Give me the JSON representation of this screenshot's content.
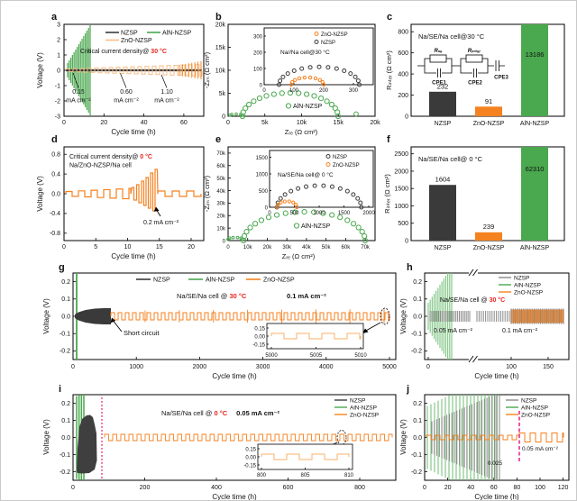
{
  "colors": {
    "nzsp": "#3a3a3a",
    "nzsp_gray": "#8a8a8a",
    "aln_nzsp": "#4aa84e",
    "zno_nzsp": "#f58220",
    "zno_light": "#f9bd86",
    "temp_red": "#e8251f",
    "dotted_line_red": "#ef3b6e",
    "dashed_line_magenta": "#ec2a90"
  },
  "chart_data": [
    {
      "panel": "a",
      "type": "line",
      "ylabel": "Voltage (V)",
      "xlabel": "Cycle time (h)",
      "xlim": [
        0,
        70
      ],
      "ylim": [
        -3,
        3
      ],
      "xticks": [
        "0",
        "20",
        "40",
        "60"
      ],
      "yticks": [
        "3",
        "2",
        "1",
        "0",
        "-1",
        "-2",
        "-3"
      ],
      "legend": [
        "NZSP",
        "AlN-NZSP",
        "ZnO-NZSP"
      ],
      "note": {
        "prefix": "Critical current density@ ",
        "temp": "30 °C"
      },
      "annotations": [
        {
          "value": "0.15",
          "unit": "mA cm⁻²"
        },
        {
          "value": "0.60",
          "unit": "mA cm⁻²"
        },
        {
          "value": "1.10",
          "unit": "mA cm⁻²"
        }
      ],
      "series": [
        {
          "name": "NZSP",
          "behavior": "small stable polarization near 0 V over 0-70 h"
        },
        {
          "name": "AlN-NZSP",
          "behavior": "polarization grows rapidly, spikes to ±3 V, fails near 13 h"
        },
        {
          "name": "ZnO-NZSP",
          "behavior": "stepwise growing polarization, about ±0.4 V by 70 h"
        }
      ]
    },
    {
      "panel": "b",
      "type": "scatter",
      "xlabel": "Zᵣₑ (Ω cm²)",
      "ylabel": "-Zᵢₘ (Ω cm²)",
      "xlim": [
        0,
        20000
      ],
      "ylim": [
        0,
        20000
      ],
      "xticks": [
        "0",
        "5k",
        "10k",
        "15k",
        "20k"
      ],
      "yticks": [
        "20k",
        "15k",
        "10k",
        "5k",
        "0"
      ],
      "series": [
        {
          "name": "AlN-NZSP",
          "semicircle_ohm": {
            "start": 2000,
            "end": 15000,
            "peak": 5000
          },
          "extra_point_ohm": 17500
        }
      ],
      "inset": {
        "title": "Na//Na cell@30 °C",
        "legend": [
          "ZnO-NZSP",
          "NZSP"
        ],
        "xticks": [
          "0",
          "100",
          "200",
          "300"
        ],
        "yticks": [
          "300",
          "200",
          "100",
          "0"
        ],
        "series": [
          {
            "name": "ZnO-NZSP",
            "semicircle_ohm": {
              "start": 90,
              "end": 200,
              "peak": 45
            }
          },
          {
            "name": "NZSP",
            "semicircle_ohm": {
              "start": 50,
              "end": 320,
              "peak": 110
            }
          }
        ]
      }
    },
    {
      "panel": "c",
      "type": "bar",
      "title": "Na/SE/Na cell@30 °C",
      "ylabel": "Rᵢₙₜₑᵣ (Ω cm²)",
      "ylim": [
        0,
        900
      ],
      "yticks": [
        "800",
        "600",
        "400",
        "200",
        "0"
      ],
      "categories": [
        "NZSP",
        "ZnO-NZSP",
        "AlN-NZSP"
      ],
      "values": [
        232,
        91,
        13186
      ],
      "bar_colors": [
        "#3a3a3a",
        "#f58220",
        "#4aa84e"
      ],
      "circuit": {
        "r1": "Rₛₑ",
        "r2": "Rᵢₙₜₑᵣ",
        "cpe1": "CPE1",
        "cpe2": "CPE2",
        "cpe3": "CPE3"
      }
    },
    {
      "panel": "d",
      "type": "line",
      "ylabel": "Voltage (V)",
      "xlabel": "Cycle time (h)",
      "xlim": [
        0,
        22
      ],
      "ylim": [
        -0.9,
        0.9
      ],
      "xticks": [
        "0",
        "5",
        "10",
        "15",
        "20"
      ],
      "yticks": [
        "0.8",
        "0.4",
        "0.0",
        "-0.4",
        "-0.8"
      ],
      "note": {
        "prefix": "Critical current density@ ",
        "temp": "0 °C",
        "line2": "Na/ZnO-NZSP/Na cell"
      },
      "annotation": "0.2 mA cm⁻²",
      "series": [
        {
          "name": "ZnO-NZSP",
          "behavior": "square-wave cycling, spikes to about +0.5/-0.35 V at 11-15 h, stabilizes after 15 h"
        }
      ]
    },
    {
      "panel": "e",
      "type": "scatter",
      "xlabel": "Zᵣₑ (Ω cm²)",
      "ylabel": "-Zᵢₘ (Ω cm²)",
      "xlim": [
        0,
        75000
      ],
      "ylim": [
        0,
        75000
      ],
      "xticks": [
        "0",
        "10k",
        "20k",
        "30k",
        "40k",
        "50k",
        "60k",
        "70k"
      ],
      "yticks": [
        "70k",
        "60k",
        "50k",
        "40k",
        "30k",
        "20k",
        "10k",
        "0"
      ],
      "series": [
        {
          "name": "AlN-NZSP",
          "semicircle_ohm": {
            "start": 8000,
            "end": 70000,
            "peak": 23000
          }
        }
      ],
      "inset": {
        "title": "Na/SE/Na cell@ 0 °C",
        "legend": [
          "NZSP",
          "ZnO-NZSP"
        ],
        "xticks": [
          "0",
          "500",
          "1000",
          "1500",
          "2000"
        ],
        "yticks": [
          "1500",
          "1000",
          "500",
          "0"
        ],
        "series": [
          {
            "name": "NZSP",
            "semicircle_ohm": {
              "start": 150,
              "end": 1850,
              "peak": 650
            }
          },
          {
            "name": "ZnO-NZSP",
            "semicircle_ohm": {
              "start": 150,
              "end": 550,
              "peak": 180
            }
          }
        ]
      }
    },
    {
      "panel": "f",
      "type": "bar",
      "title": "Na/SE/Na cell@ 0 °C",
      "ylabel": "Rᵢₙₜₑᵣ (Ω cm²)",
      "ylim": [
        0,
        2700
      ],
      "yticks": [
        "2500",
        "2000",
        "1500",
        "1000",
        "500",
        "0"
      ],
      "categories": [
        "NZSP",
        "ZnO-NZSP",
        "AlN-NZSP"
      ],
      "values": [
        1604,
        239,
        62310
      ],
      "bar_colors": [
        "#3a3a3a",
        "#f58220",
        "#4aa84e"
      ]
    },
    {
      "panel": "g",
      "type": "line",
      "ylabel": "Voltage (V)",
      "xlabel": "Cycle time (h)",
      "xlim": [
        0,
        5100
      ],
      "ylim": [
        -0.25,
        0.25
      ],
      "xticks": [
        "0",
        "1000",
        "2000",
        "3000",
        "4000",
        "5000"
      ],
      "yticks": [
        "0.2",
        "0.1",
        "0.0",
        "-0.1",
        "-0.2"
      ],
      "legend": [
        "NZSP",
        "AlN-NZSP",
        "ZnO-NZSP"
      ],
      "title_note": {
        "prefix": "Na/SE/Na cell @ ",
        "temp": "30 °C"
      },
      "current": "0.1 mA cm⁻²",
      "annotation": "Short circuit",
      "inset": {
        "xticks": [
          "5000",
          "5005",
          "5010"
        ],
        "yticks": [
          "0.15",
          "0.00",
          "-0.15"
        ]
      },
      "series": [
        {
          "name": "NZSP",
          "behavior": "polarization grows, short circuit near 600 h"
        },
        {
          "name": "AlN-NZSP",
          "behavior": "fails almost immediately"
        },
        {
          "name": "ZnO-NZSP",
          "behavior": "stable cycling to 5000 h"
        }
      ]
    },
    {
      "panel": "h",
      "type": "line",
      "ylabel": "Voltage (V)",
      "xlabel": "Cycle time (h)",
      "axis_break": true,
      "xticks": [
        "0",
        "100",
        "150"
      ],
      "yticks": [
        "0.2",
        "0.1",
        "0.0",
        "-0.1",
        "-0.2"
      ],
      "legend": [
        "NZSP",
        "AlN-NZSP",
        "ZnO-NZSP"
      ],
      "title_note": {
        "prefix": "Na/SE/Na cell @ ",
        "temp": "30 °C"
      },
      "currents": [
        "0.05 mA cm⁻²",
        "0.1 mA cm⁻²"
      ],
      "series": [
        {
          "name": "NZSP",
          "behavior": "stable square-wave at 0.05 then 0.1 mA cm⁻²"
        },
        {
          "name": "AlN-NZSP",
          "behavior": "large unstable voltage, fails before 20 h"
        },
        {
          "name": "ZnO-NZSP",
          "behavior": "stable cycling at 0.1 mA cm⁻² from 100 h"
        }
      ]
    },
    {
      "panel": "i",
      "type": "line",
      "ylabel": "Voltage (V)",
      "xlabel": "Cycle time (h)",
      "xlim": [
        0,
        900
      ],
      "xticks": [
        "0",
        "200",
        "400",
        "600",
        "800"
      ],
      "yticks": [
        "0.2",
        "0.1",
        "0.0",
        "-0.1",
        "-0.2"
      ],
      "legend": [
        "NZSP",
        "AlN-NZSP",
        "ZnO-NZSP"
      ],
      "title_note": {
        "prefix": "Na/SE/Na cell @ ",
        "temp": "0 °C",
        "current": "0.05 mA cm⁻²"
      },
      "inset": {
        "xticks": [
          "800",
          "805",
          "810"
        ],
        "yticks": [
          "0.15",
          "0.00",
          "-0.15"
        ]
      },
      "series": [
        {
          "name": "NZSP",
          "behavior": "large polarization, fails near 60 h"
        },
        {
          "name": "AlN-NZSP",
          "behavior": "fails immediately"
        },
        {
          "name": "ZnO-NZSP",
          "behavior": "stable cycling to about 870 h"
        }
      ]
    },
    {
      "panel": "j",
      "type": "line",
      "ylabel": "Voltage (V)",
      "xlabel": "Cycle time (h)",
      "xlim": [
        0,
        125
      ],
      "xticks": [
        "0",
        "20",
        "40",
        "60",
        "80",
        "100",
        "120"
      ],
      "yticks": [
        "0.2",
        "0.1",
        "0.0",
        "-0.1",
        "-0.2"
      ],
      "legend": [
        "NZSP",
        "AlN-NZSP",
        "ZnO-NZSP"
      ],
      "annotations": [
        "0.05 mA cm⁻²",
        "0.025"
      ],
      "series": [
        {
          "name": "NZSP",
          "behavior": "large oscillations up to ±0.17 V until about 65 h"
        },
        {
          "name": "AlN-NZSP",
          "behavior": "very large unstable voltage until about 60 h"
        },
        {
          "name": "ZnO-NZSP",
          "behavior": "small stable polarization, step increase at about 82 h"
        }
      ]
    }
  ]
}
